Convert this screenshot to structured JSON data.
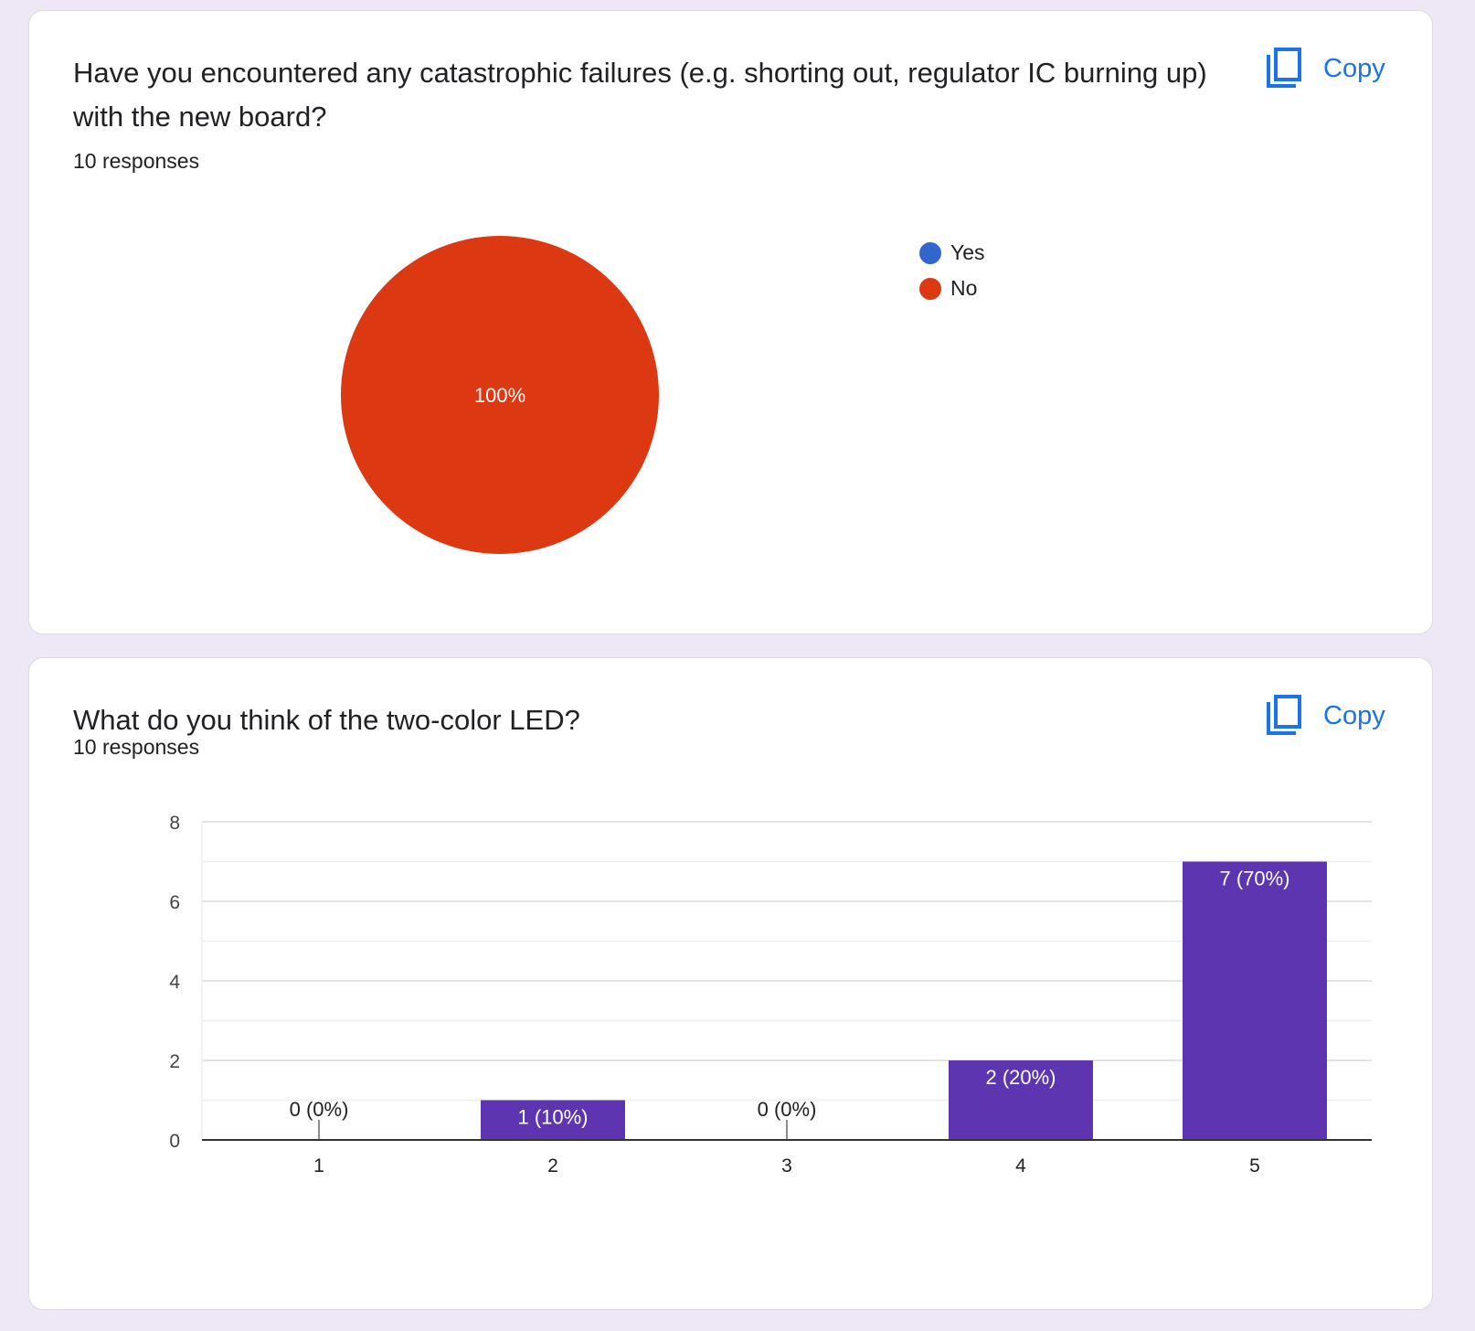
{
  "colors": {
    "background": "#ede7f6",
    "card": "#ffffff",
    "accent": "#1a73e8",
    "pie_yes": "#3366cc",
    "pie_no": "#dc3912",
    "bar": "#5e35b1"
  },
  "questions": [
    {
      "title": "Have you encountered any catastrophic failures (e.g. shorting out, regulator IC burning up) with the new board?",
      "responses": "10 responses",
      "copy_label": "Copy",
      "copy_icon": "copy-icon",
      "legend": [
        "Yes",
        "No"
      ]
    },
    {
      "title": "What do you think of the two-color LED?",
      "responses": "10 responses",
      "copy_label": "Copy",
      "copy_icon": "copy-icon"
    }
  ],
  "chart_data": [
    {
      "type": "pie",
      "categories": [
        "Yes",
        "No"
      ],
      "values": [
        0,
        10
      ],
      "slice_labels": [
        "",
        "100%"
      ],
      "legend_position": "right"
    },
    {
      "type": "bar",
      "categories": [
        "1",
        "2",
        "3",
        "4",
        "5"
      ],
      "values": [
        0,
        1,
        0,
        2,
        7
      ],
      "data_labels": [
        "0 (0%)",
        "1 (10%)",
        "0 (0%)",
        "2 (20%)",
        "7 (70%)"
      ],
      "yticks": [
        "0",
        "2",
        "4",
        "6",
        "8"
      ],
      "ylim": [
        0,
        8
      ],
      "grid": true
    }
  ]
}
